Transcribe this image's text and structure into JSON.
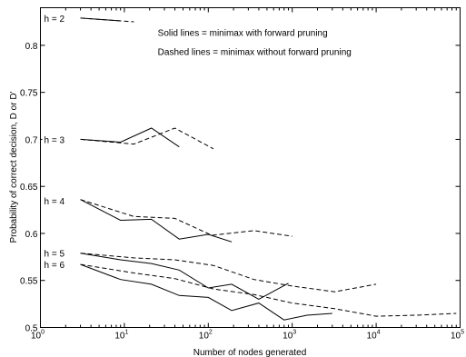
{
  "chart_data": {
    "type": "line",
    "xlabel": "Number of nodes generated",
    "ylabel": "Probability of correct decision, D or D'",
    "x_scale": "log",
    "xlim": [
      1,
      100000
    ],
    "ylim": [
      0.5,
      0.84
    ],
    "grid": false,
    "x_ticks": [
      {
        "base": "10",
        "exp": "0",
        "value": 1
      },
      {
        "base": "10",
        "exp": "1",
        "value": 10
      },
      {
        "base": "10",
        "exp": "2",
        "value": 100
      },
      {
        "base": "10",
        "exp": "3",
        "value": 1000
      },
      {
        "base": "10",
        "exp": "4",
        "value": 10000
      },
      {
        "base": "10",
        "exp": "5",
        "value": 100000
      }
    ],
    "y_ticks": [
      {
        "label": "0.5",
        "value": 0.5
      },
      {
        "label": "0.55",
        "value": 0.55
      },
      {
        "label": "0.6",
        "value": 0.6
      },
      {
        "label": "0.65",
        "value": 0.65
      },
      {
        "label": "0.7",
        "value": 0.7
      },
      {
        "label": "0.75",
        "value": 0.75
      },
      {
        "label": "0.8",
        "value": 0.8
      }
    ],
    "annotations": [
      {
        "text": "Solid lines = minimax with forward pruning",
        "x": 25,
        "y": 0.81
      },
      {
        "text": "Dashed lines = minimax without forward pruning",
        "x": 25,
        "y": 0.79
      }
    ],
    "depth_labels": [
      {
        "text": "h = 2",
        "y": 0.828
      },
      {
        "text": "h = 3",
        "y": 0.699
      },
      {
        "text": "h = 4",
        "y": 0.634
      },
      {
        "text": "h = 5",
        "y": 0.578
      },
      {
        "text": "h = 6",
        "y": 0.566
      }
    ],
    "series": [
      {
        "style": "solid",
        "x": [
          3,
          9
        ],
        "y": [
          0.829,
          0.826
        ]
      },
      {
        "style": "dashed",
        "x": [
          3,
          13
        ],
        "y": [
          0.829,
          0.825
        ]
      },
      {
        "style": "solid",
        "x": [
          3,
          9,
          21,
          45
        ],
        "y": [
          0.7,
          0.697,
          0.712,
          0.692
        ]
      },
      {
        "style": "dashed",
        "x": [
          3,
          13,
          40,
          115
        ],
        "y": [
          0.7,
          0.695,
          0.712,
          0.69
        ]
      },
      {
        "style": "solid",
        "x": [
          3,
          9,
          21,
          45,
          100,
          190
        ],
        "y": [
          0.636,
          0.614,
          0.615,
          0.594,
          0.599,
          0.591
        ]
      },
      {
        "style": "dashed",
        "x": [
          3,
          13,
          40,
          110,
          350,
          1000
        ],
        "y": [
          0.636,
          0.618,
          0.616,
          0.598,
          0.603,
          0.597
        ]
      },
      {
        "style": "solid",
        "x": [
          3,
          9,
          21,
          45,
          100,
          190,
          400,
          900
        ],
        "y": [
          0.579,
          0.572,
          0.568,
          0.561,
          0.542,
          0.546,
          0.53,
          0.547
        ]
      },
      {
        "style": "dashed",
        "x": [
          3,
          13,
          40,
          115,
          350,
          1000,
          3200,
          10000
        ],
        "y": [
          0.579,
          0.574,
          0.572,
          0.566,
          0.551,
          0.544,
          0.538,
          0.546
        ]
      },
      {
        "style": "solid",
        "x": [
          3,
          9,
          21,
          45,
          100,
          190,
          400,
          800,
          1500,
          3000
        ],
        "y": [
          0.567,
          0.551,
          0.546,
          0.534,
          0.532,
          0.518,
          0.526,
          0.508,
          0.513,
          0.515
        ]
      },
      {
        "style": "dashed",
        "x": [
          3,
          13,
          40,
          115,
          350,
          1000,
          3200,
          10000,
          30000,
          90000
        ],
        "y": [
          0.567,
          0.558,
          0.552,
          0.541,
          0.535,
          0.526,
          0.52,
          0.512,
          0.513,
          0.515
        ]
      }
    ]
  }
}
